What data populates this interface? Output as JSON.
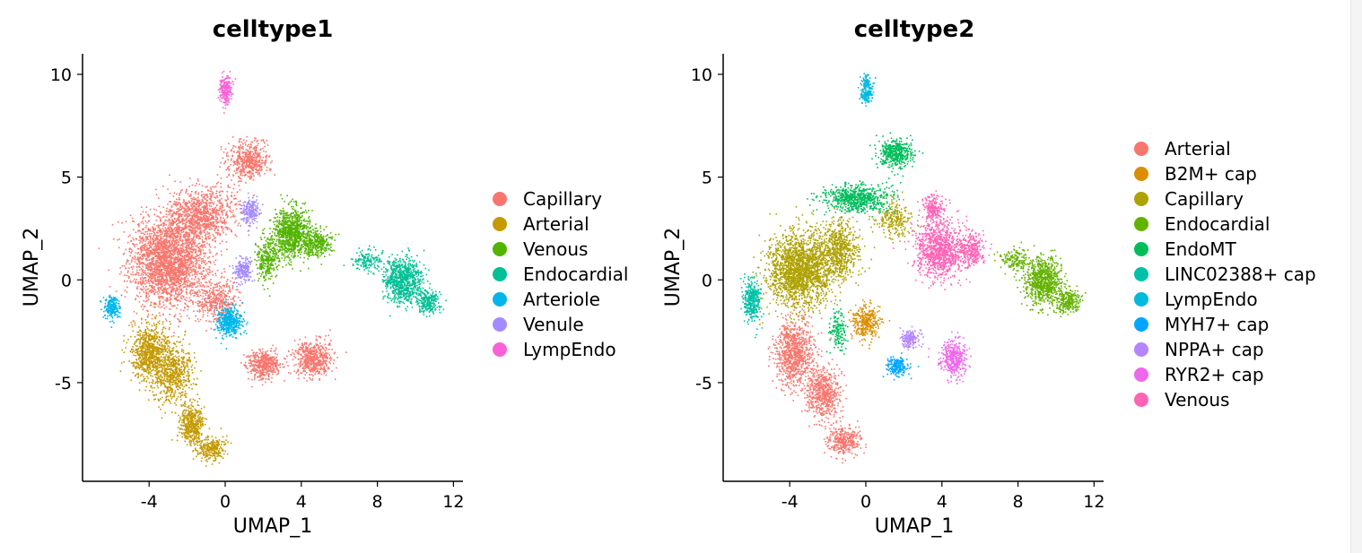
{
  "colors": {
    "Capillary": "#F8766D",
    "Arterial": "#C49A00",
    "Venous": "#53B400",
    "Endocardial": "#00C094",
    "Arteriole": "#00B6EB",
    "Venule": "#A58AFF",
    "LympEndo": "#FB61D7",
    "ct2_Arterial": "#F8766D",
    "ct2_B2M": "#DB8E00",
    "ct2_Capillary": "#AEA200",
    "ct2_Endocardial": "#64B200",
    "ct2_EndoMT": "#00BD5C",
    "ct2_LINC": "#00C1A7",
    "ct2_LympEndo": "#00BADE",
    "ct2_MYH7": "#00A6FF",
    "ct2_NPPA": "#B385FF",
    "ct2_RYR2": "#EF67EB",
    "ct2_Venous": "#FF63B6"
  },
  "chart_data": [
    {
      "type": "scatter",
      "title": "celltype1",
      "xlabel": "UMAP_1",
      "ylabel": "UMAP_2",
      "xlim": [
        -7.5,
        12.5
      ],
      "ylim": [
        -9.8,
        11.0
      ],
      "xticks": [
        -4,
        0,
        4,
        8,
        12
      ],
      "yticks": [
        10,
        5,
        0,
        -5
      ],
      "xtick_labels": [
        "-4",
        "0",
        "4",
        "8",
        "12"
      ],
      "ytick_labels": [
        "10",
        "5",
        "0",
        "-5"
      ],
      "legend": "right",
      "series": [
        {
          "name": "Capillary",
          "color": "#F8766D",
          "clusters": [
            {
              "cx": -3.0,
              "cy": 1.0,
              "sx": 1.8,
              "sy": 2.0,
              "n": 2600
            },
            {
              "cx": -1.2,
              "cy": 3.2,
              "sx": 1.6,
              "sy": 1.2,
              "n": 900
            },
            {
              "cx": 1.2,
              "cy": 5.8,
              "sx": 1.0,
              "sy": 0.8,
              "n": 500
            },
            {
              "cx": -0.5,
              "cy": -1.0,
              "sx": 1.0,
              "sy": 1.0,
              "n": 400
            },
            {
              "cx": 2.0,
              "cy": -4.1,
              "sx": 0.8,
              "sy": 0.6,
              "n": 450
            },
            {
              "cx": 4.6,
              "cy": -3.8,
              "sx": 0.9,
              "sy": 0.8,
              "n": 550
            }
          ]
        },
        {
          "name": "Arterial",
          "color": "#C49A00",
          "clusters": [
            {
              "cx": -4.0,
              "cy": -3.5,
              "sx": 0.9,
              "sy": 1.3,
              "n": 800
            },
            {
              "cx": -2.8,
              "cy": -4.5,
              "sx": 0.9,
              "sy": 1.2,
              "n": 600
            },
            {
              "cx": -1.8,
              "cy": -7.0,
              "sx": 0.6,
              "sy": 0.9,
              "n": 450
            },
            {
              "cx": -0.8,
              "cy": -8.2,
              "sx": 0.7,
              "sy": 0.5,
              "n": 250
            }
          ]
        },
        {
          "name": "Venous",
          "color": "#53B400",
          "clusters": [
            {
              "cx": 3.5,
              "cy": 2.3,
              "sx": 0.9,
              "sy": 1.2,
              "n": 900
            },
            {
              "cx": 4.8,
              "cy": 1.8,
              "sx": 0.7,
              "sy": 0.6,
              "n": 300
            },
            {
              "cx": 2.2,
              "cy": 1.0,
              "sx": 0.6,
              "sy": 1.0,
              "n": 300
            }
          ]
        },
        {
          "name": "Endocardial",
          "color": "#00C094",
          "clusters": [
            {
              "cx": 9.3,
              "cy": 0.0,
              "sx": 0.9,
              "sy": 1.0,
              "n": 800
            },
            {
              "cx": 10.6,
              "cy": -1.0,
              "sx": 0.6,
              "sy": 0.5,
              "n": 250
            },
            {
              "cx": 7.5,
              "cy": 1.0,
              "sx": 0.8,
              "sy": 0.5,
              "n": 150
            }
          ]
        },
        {
          "name": "Arteriole",
          "color": "#00B6EB",
          "clusters": [
            {
              "cx": 0.2,
              "cy": -2.0,
              "sx": 0.6,
              "sy": 0.6,
              "n": 450
            },
            {
              "cx": -6.0,
              "cy": -1.3,
              "sx": 0.4,
              "sy": 0.5,
              "n": 200
            }
          ]
        },
        {
          "name": "Venule",
          "color": "#A58AFF",
          "clusters": [
            {
              "cx": 1.3,
              "cy": 3.4,
              "sx": 0.4,
              "sy": 0.6,
              "n": 200
            },
            {
              "cx": 0.9,
              "cy": 0.5,
              "sx": 0.4,
              "sy": 0.5,
              "n": 200
            }
          ]
        },
        {
          "name": "LympEndo",
          "color": "#FB61D7",
          "clusters": [
            {
              "cx": 0.0,
              "cy": 9.3,
              "sx": 0.3,
              "sy": 0.6,
              "n": 200
            }
          ]
        }
      ]
    },
    {
      "type": "scatter",
      "title": "celltype2",
      "xlabel": "UMAP_1",
      "ylabel": "UMAP_2",
      "xlim": [
        -7.5,
        12.5
      ],
      "ylim": [
        -9.8,
        11.0
      ],
      "xticks": [
        -4,
        0,
        4,
        8,
        12
      ],
      "yticks": [
        10,
        5,
        0,
        -5
      ],
      "xtick_labels": [
        "-4",
        "0",
        "4",
        "8",
        "12"
      ],
      "ytick_labels": [
        "10",
        "5",
        "0",
        "-5"
      ],
      "legend": "right",
      "series": [
        {
          "name": "Arterial",
          "color": "#F8766D",
          "clusters": [
            {
              "cx": -3.8,
              "cy": -3.5,
              "sx": 0.9,
              "sy": 1.5,
              "n": 900
            },
            {
              "cx": -2.3,
              "cy": -5.5,
              "sx": 0.8,
              "sy": 1.2,
              "n": 600
            },
            {
              "cx": -1.2,
              "cy": -7.8,
              "sx": 0.7,
              "sy": 0.6,
              "n": 350
            }
          ]
        },
        {
          "name": "B2M+ cap",
          "color": "#DB8E00",
          "clusters": [
            {
              "cx": 0.0,
              "cy": -2.0,
              "sx": 0.6,
              "sy": 0.7,
              "n": 350
            }
          ]
        },
        {
          "name": "Capillary",
          "color": "#AEA200",
          "clusters": [
            {
              "cx": -3.5,
              "cy": 0.5,
              "sx": 1.5,
              "sy": 1.6,
              "n": 2000
            },
            {
              "cx": -1.5,
              "cy": 1.5,
              "sx": 1.0,
              "sy": 1.2,
              "n": 700
            },
            {
              "cx": 1.5,
              "cy": 3.0,
              "sx": 0.8,
              "sy": 0.8,
              "n": 250
            }
          ]
        },
        {
          "name": "Endocardial",
          "color": "#64B200",
          "clusters": [
            {
              "cx": 9.3,
              "cy": 0.0,
              "sx": 0.9,
              "sy": 1.0,
              "n": 800
            },
            {
              "cx": 10.6,
              "cy": -1.0,
              "sx": 0.6,
              "sy": 0.5,
              "n": 250
            },
            {
              "cx": 7.8,
              "cy": 1.0,
              "sx": 0.7,
              "sy": 0.5,
              "n": 150
            }
          ]
        },
        {
          "name": "EndoMT",
          "color": "#00BD5C",
          "clusters": [
            {
              "cx": 1.5,
              "cy": 6.2,
              "sx": 0.8,
              "sy": 0.6,
              "n": 450
            },
            {
              "cx": -0.5,
              "cy": 4.0,
              "sx": 1.6,
              "sy": 0.6,
              "n": 700
            },
            {
              "cx": -1.5,
              "cy": -2.5,
              "sx": 0.4,
              "sy": 0.8,
              "n": 150
            }
          ]
        },
        {
          "name": "LINC02388+ cap",
          "color": "#00C1A7",
          "clusters": [
            {
              "cx": -6.0,
              "cy": -1.0,
              "sx": 0.4,
              "sy": 0.9,
              "n": 350
            }
          ]
        },
        {
          "name": "LympEndo",
          "color": "#00BADE",
          "clusters": [
            {
              "cx": 0.0,
              "cy": 9.3,
              "sx": 0.3,
              "sy": 0.6,
              "n": 200
            }
          ]
        },
        {
          "name": "MYH7+ cap",
          "color": "#00A6FF",
          "clusters": [
            {
              "cx": 1.6,
              "cy": -4.2,
              "sx": 0.5,
              "sy": 0.4,
              "n": 200
            }
          ]
        },
        {
          "name": "NPPA+ cap",
          "color": "#B385FF",
          "clusters": [
            {
              "cx": 2.3,
              "cy": -2.8,
              "sx": 0.4,
              "sy": 0.4,
              "n": 150
            }
          ]
        },
        {
          "name": "RYR2+ cap",
          "color": "#EF67EB",
          "clusters": [
            {
              "cx": 4.6,
              "cy": -3.8,
              "sx": 0.6,
              "sy": 0.8,
              "n": 400
            }
          ]
        },
        {
          "name": "Venous",
          "color": "#FF63B6",
          "clusters": [
            {
              "cx": 3.8,
              "cy": 1.5,
              "sx": 1.1,
              "sy": 1.3,
              "n": 1000
            },
            {
              "cx": 5.5,
              "cy": 1.5,
              "sx": 0.7,
              "sy": 0.8,
              "n": 300
            },
            {
              "cx": 3.5,
              "cy": 3.5,
              "sx": 0.5,
              "sy": 0.6,
              "n": 200
            }
          ]
        }
      ]
    }
  ]
}
